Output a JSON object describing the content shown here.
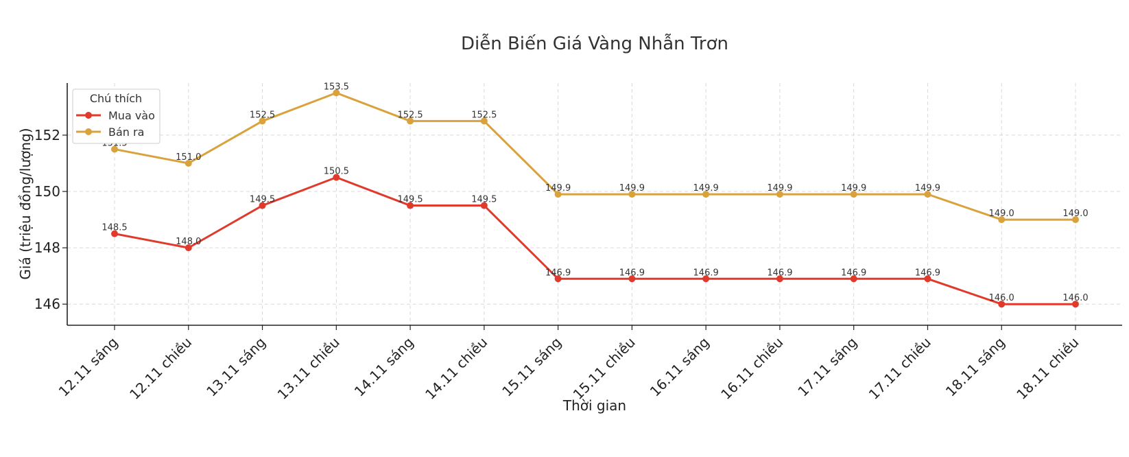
{
  "chart_data": {
    "type": "line",
    "title": "Diễn Biến Giá Vàng Nhẫn Trơn",
    "xlabel": "Thời gian",
    "ylabel": "Giá (triệu đồng/lượng)",
    "categories": [
      "12.11 sáng",
      "12.11 chiều",
      "13.11 sáng",
      "13.11 chiều",
      "14.11 sáng",
      "14.11 chiều",
      "15.11 sáng",
      "15.11 chiều",
      "16.11 sáng",
      "16.11 chiều",
      "17.11 sáng",
      "17.11 chiều",
      "18.11 sáng",
      "18.11 chiều"
    ],
    "yticks": [
      146,
      148,
      150,
      152
    ],
    "ylim": [
      145.25,
      153.85
    ],
    "grid": true,
    "legend": {
      "title": "Chú thích",
      "placement": "top-left"
    },
    "series": [
      {
        "name": "Mua vào",
        "color": "#e03a2d",
        "values": [
          148.5,
          148.0,
          149.5,
          150.5,
          149.5,
          149.5,
          146.9,
          146.9,
          146.9,
          146.9,
          146.9,
          146.9,
          146.0,
          146.0
        ]
      },
      {
        "name": "Bán ra",
        "color": "#d9a23c",
        "values": [
          151.5,
          151.0,
          152.5,
          153.5,
          152.5,
          152.5,
          149.9,
          149.9,
          149.9,
          149.9,
          149.9,
          149.9,
          149.0,
          149.0
        ]
      }
    ]
  }
}
